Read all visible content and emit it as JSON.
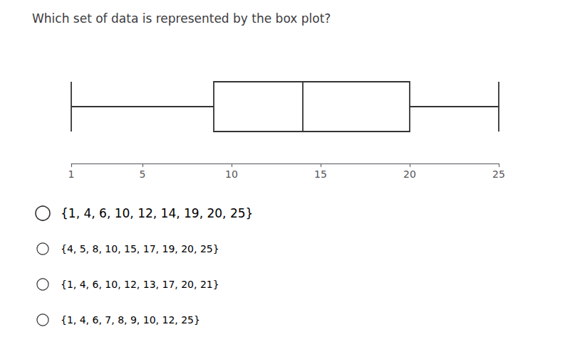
{
  "chart_data": {
    "type": "boxplot",
    "title": "Which set of data is represented by the box plot?​",
    "box": {
      "whisker_min": 1,
      "q1": 9,
      "median": 14,
      "q3": 20,
      "whisker_max": 25
    },
    "xlim": [
      1,
      25
    ],
    "xticks": [
      1,
      5,
      10,
      15,
      20,
      25
    ],
    "grid": false,
    "tick_labels": "x",
    "color": "#333333",
    "annotations": [
      "{1, 4, 6, 10, 12, 14, 19, 20, 25}",
      "{4, 5, 8, 10, 15, 17, 19, 20, 25}",
      "{1, 4, 6, 10, 12, 13, 17, 20, 21}",
      "{1, 4, 6, 7, 8, 9, 10, 12, 25}"
    ]
  }
}
